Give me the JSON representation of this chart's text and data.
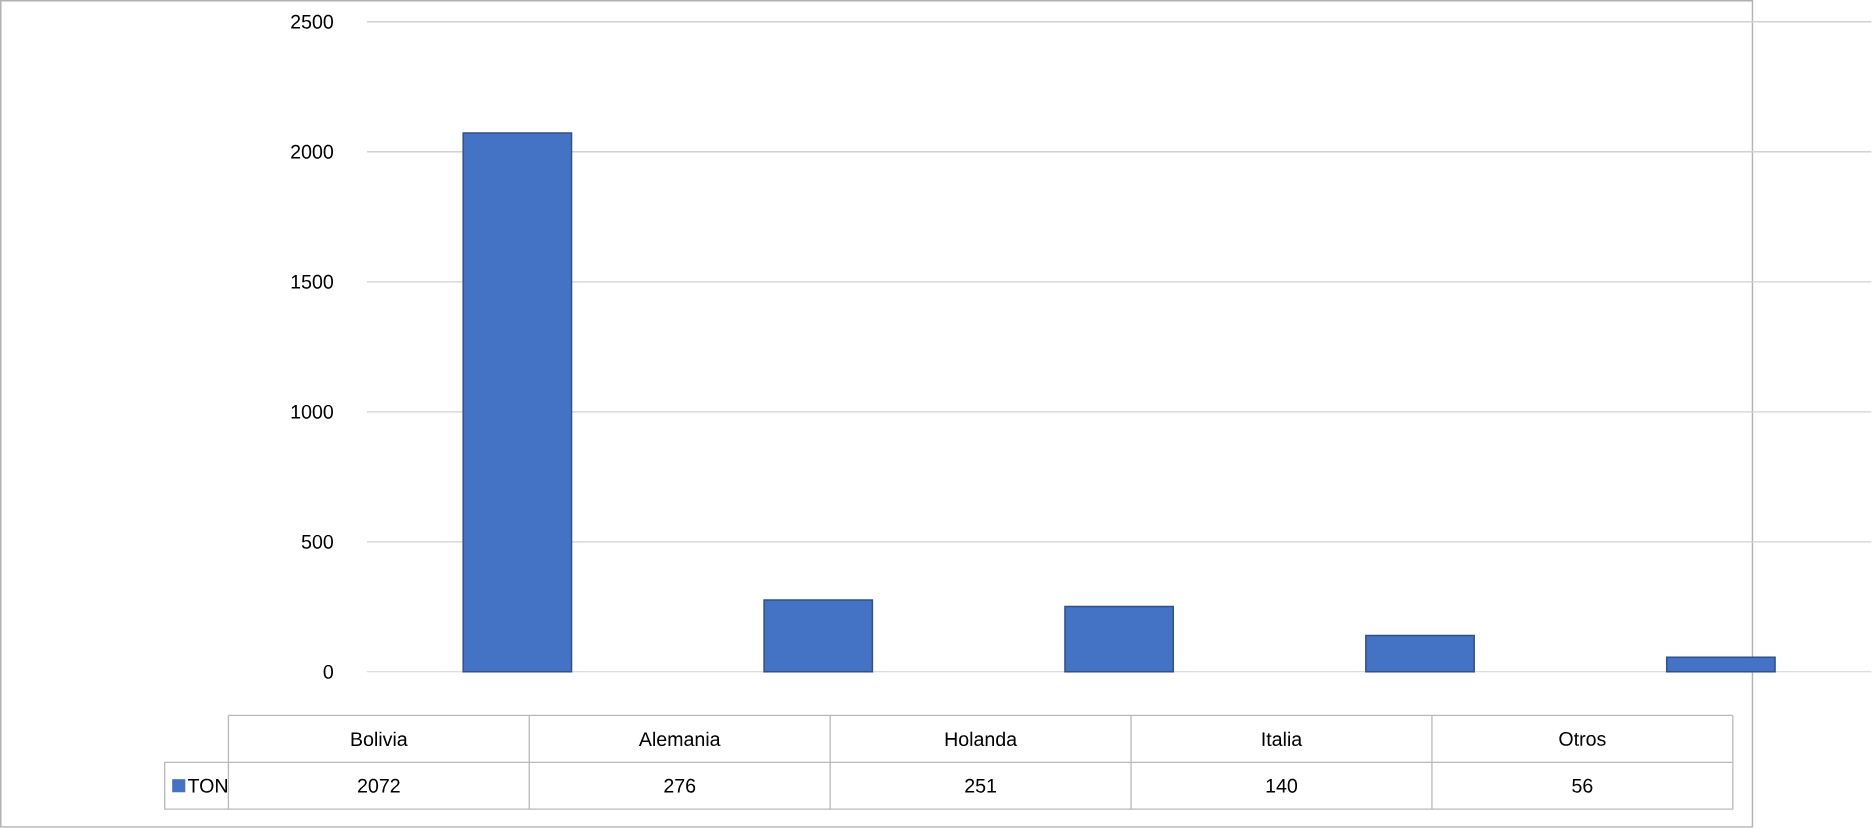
{
  "chart_data": {
    "type": "bar",
    "categories": [
      "Bolivia",
      "Alemania",
      "Holanda",
      "Italia",
      "Otros"
    ],
    "series": [
      {
        "name": "TON",
        "color": "#4472c4",
        "values": [
          2072,
          276,
          251,
          140,
          56
        ]
      }
    ],
    "ylim": [
      0,
      2500
    ],
    "yticks": [
      0,
      500,
      1000,
      1500,
      2000,
      2500
    ],
    "grid": "y",
    "data_labels": true,
    "legend": "bottom left"
  }
}
